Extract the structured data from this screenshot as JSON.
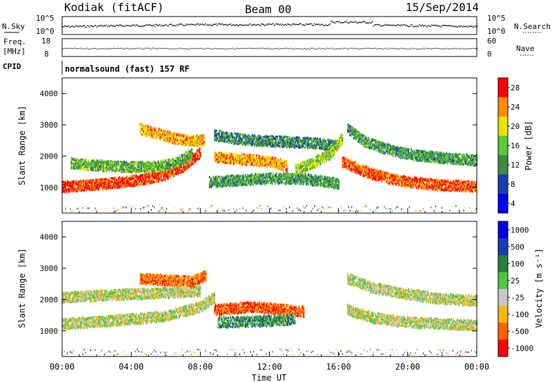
{
  "header": {
    "station": "Kodiak (fitACF)",
    "beam": "Beam 00",
    "date": "15/Sep/2014"
  },
  "chart_data": [
    {
      "type": "line",
      "name": "noise-panel",
      "left_label": "N.Sky",
      "right_label": "N.Search",
      "left_ticks": [
        "10^5",
        "10^0"
      ],
      "right_ticks": [
        "10^5",
        "10^0"
      ]
    },
    {
      "type": "line",
      "name": "freq-panel",
      "left_label_top": "Freq.",
      "left_label_bottom": "[MHz]",
      "left_ticks": [
        "18",
        "8"
      ],
      "right_label": "Nave",
      "right_ticks": [
        "60",
        "0"
      ]
    },
    {
      "type": "table",
      "name": "cpid-row",
      "label": "CPID",
      "program": "normalsound (fast) 157 RF"
    },
    {
      "type": "heatmap",
      "name": "power-panel",
      "ylabel": "Slant Range [km]",
      "ylim": [
        180,
        4500
      ],
      "yticks": [
        1000,
        2000,
        3000,
        4000
      ],
      "xlim": [
        0,
        24
      ],
      "colorbar": {
        "label": "Power [dB]",
        "tick_labels": [
          "4",
          "8",
          "12",
          "16",
          "20",
          "24",
          "28"
        ],
        "colors": [
          "#0000ff",
          "#1a3cb4",
          "#3c8c3c",
          "#5cc83c",
          "#e6e600",
          "#ff8c00",
          "#ff0000"
        ]
      },
      "bands": [
        {
          "x": [
            0.0,
            1.0,
            2.0,
            3.0,
            4.0,
            5.0,
            6.0,
            7.0,
            8.0
          ],
          "y": [
            1050,
            1080,
            1120,
            1170,
            1230,
            1320,
            1450,
            1700,
            2150
          ],
          "level": 0.9
        },
        {
          "x": [
            0.5,
            1.5,
            2.5,
            3.5,
            4.5,
            5.5,
            6.5,
            7.5
          ],
          "y": [
            1800,
            1750,
            1720,
            1690,
            1680,
            1700,
            1800,
            2100
          ],
          "level": 0.45
        },
        {
          "x": [
            4.5,
            5.5,
            6.5,
            7.5,
            8.2
          ],
          "y": [
            2900,
            2750,
            2600,
            2500,
            2550
          ],
          "level": 0.75
        },
        {
          "x": [
            8.8,
            10.0,
            11.0,
            12.0,
            13.0
          ],
          "y": [
            2000,
            1950,
            1900,
            1850,
            1700
          ],
          "level": 0.75
        },
        {
          "x": [
            8.5,
            10.0,
            12.0,
            14.0,
            16.0
          ],
          "y": [
            1200,
            1250,
            1320,
            1300,
            1150
          ],
          "level": 0.4
        },
        {
          "x": [
            8.8,
            10.5,
            12.5,
            14.5,
            16.0
          ],
          "y": [
            2700,
            2550,
            2500,
            2450,
            2350
          ],
          "level": 0.35
        },
        {
          "x": [
            16.2,
            17.0,
            18.0,
            19.0,
            20.0,
            21.0,
            22.0,
            23.0,
            24.0
          ],
          "y": [
            1850,
            1650,
            1450,
            1300,
            1200,
            1150,
            1100,
            1080,
            1050
          ],
          "level": 0.85
        },
        {
          "x": [
            16.5,
            17.5,
            18.5,
            19.5,
            20.5,
            21.5,
            22.5,
            24.0
          ],
          "y": [
            2900,
            2500,
            2300,
            2150,
            2050,
            2000,
            1950,
            1900
          ],
          "level": 0.4
        },
        {
          "x": [
            13.5,
            14.5,
            15.5,
            16.2
          ],
          "y": [
            1600,
            1800,
            2100,
            2600
          ],
          "level": 0.55
        }
      ]
    },
    {
      "type": "heatmap",
      "name": "velocity-panel",
      "ylabel": "Slant Range [km]",
      "ylim": [
        180,
        4500
      ],
      "yticks": [
        1000,
        2000,
        3000,
        4000
      ],
      "xlabel": "Time UT",
      "xticks": [
        "00:00",
        "04:00",
        "08:00",
        "12:00",
        "16:00",
        "20:00",
        "00:00"
      ],
      "xlim": [
        0,
        24
      ],
      "colorbar": {
        "label": "Velocity [m s⁻¹]",
        "tick_labels": [
          "-1000",
          "-500",
          "-100",
          "-25",
          "25",
          "100",
          "500",
          "1000"
        ],
        "colors": [
          "#ff0000",
          "#ff6400",
          "#ffb400",
          "#c8c8c8",
          "#50c83c",
          "#2d7d3c",
          "#1a3cb4",
          "#0000e6"
        ]
      },
      "bands": [
        {
          "x": [
            0.0,
            2.0,
            4.0,
            6.0,
            8.0,
            8.8
          ],
          "y": [
            1250,
            1320,
            1400,
            1500,
            1800,
            2100
          ],
          "level": 0.45
        },
        {
          "x": [
            0.0,
            2.0,
            4.0,
            6.0,
            8.0
          ],
          "y": [
            2100,
            2150,
            2200,
            2250,
            2300
          ],
          "level": 0.45
        },
        {
          "x": [
            4.5,
            6.0,
            7.5,
            8.3
          ],
          "y": [
            2700,
            2650,
            2600,
            2800
          ],
          "level": 0.2
        },
        {
          "x": [
            8.8,
            10.0,
            11.0,
            12.0,
            13.0,
            14.0
          ],
          "y": [
            1700,
            1750,
            1800,
            1750,
            1700,
            1650
          ],
          "level": 0.15
        },
        {
          "x": [
            9.0,
            10.5,
            12.0,
            13.5
          ],
          "y": [
            1300,
            1320,
            1350,
            1400
          ],
          "level": 0.65
        },
        {
          "x": [
            16.5,
            18.0,
            20.0,
            22.0,
            24.0
          ],
          "y": [
            1700,
            1450,
            1300,
            1250,
            1200
          ],
          "level": 0.45
        },
        {
          "x": [
            16.5,
            18.0,
            20.0,
            22.0,
            24.0
          ],
          "y": [
            2700,
            2400,
            2200,
            2050,
            2000
          ],
          "level": 0.45
        }
      ]
    }
  ]
}
